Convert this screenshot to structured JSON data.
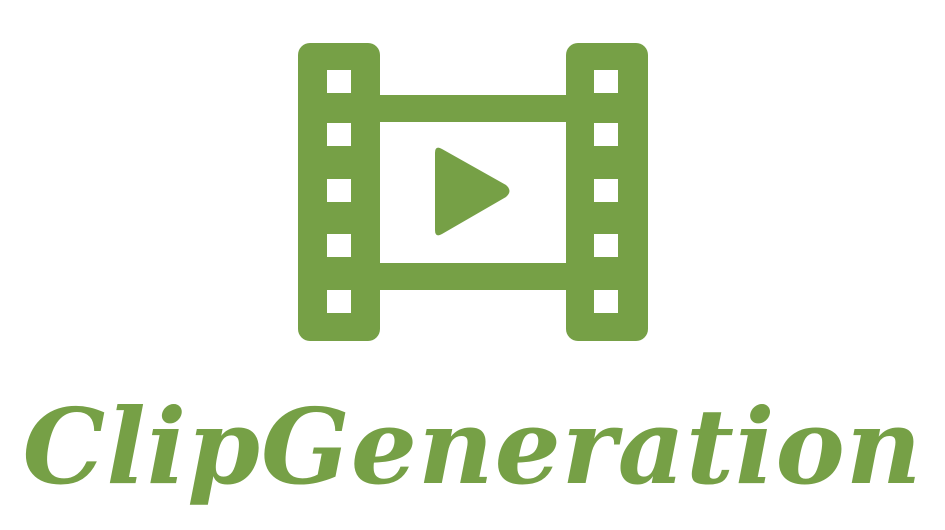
{
  "brand": {
    "name": "ClipGeneration",
    "color": "#76A046",
    "icon": "film-strip-play-icon"
  }
}
